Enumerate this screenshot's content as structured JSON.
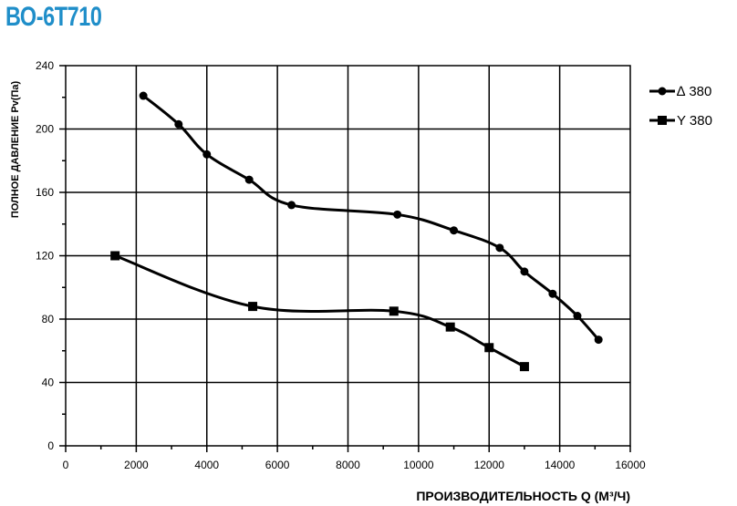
{
  "page": {
    "title": "ВО-6Т710"
  },
  "chart_data": {
    "type": "line",
    "title": "ВО-6Т710",
    "xlabel": "ПРОИЗВОДИТЕЛЬНОСТЬ  Q  (М³/Ч)",
    "ylabel": "ПОЛНОЕ ДАВЛЕНИЕ  Pv(Па)",
    "xlim": [
      0,
      16000
    ],
    "ylim": [
      0,
      240
    ],
    "x_ticks": [
      "0",
      "2000",
      "4000",
      "6000",
      "8000",
      "10000",
      "12000",
      "14000",
      "16000"
    ],
    "y_ticks": [
      "0",
      "40",
      "80",
      "120",
      "160",
      "200",
      "240"
    ],
    "grid": true,
    "legend_position": "right",
    "series": [
      {
        "name": "∆ 380",
        "marker": "circle",
        "color": "#000000",
        "points": [
          [
            2200,
            221
          ],
          [
            3200,
            203
          ],
          [
            4000,
            184
          ],
          [
            5200,
            168
          ],
          [
            6400,
            152
          ],
          [
            9400,
            146
          ],
          [
            11000,
            136
          ],
          [
            12300,
            125
          ],
          [
            13000,
            110
          ],
          [
            13800,
            96
          ],
          [
            14500,
            82
          ],
          [
            15100,
            67
          ]
        ]
      },
      {
        "name": "Y 380",
        "marker": "square",
        "color": "#000000",
        "points": [
          [
            1400,
            120
          ],
          [
            5300,
            88
          ],
          [
            9300,
            85
          ],
          [
            10900,
            75
          ],
          [
            12000,
            62
          ],
          [
            13000,
            50
          ]
        ]
      }
    ]
  }
}
